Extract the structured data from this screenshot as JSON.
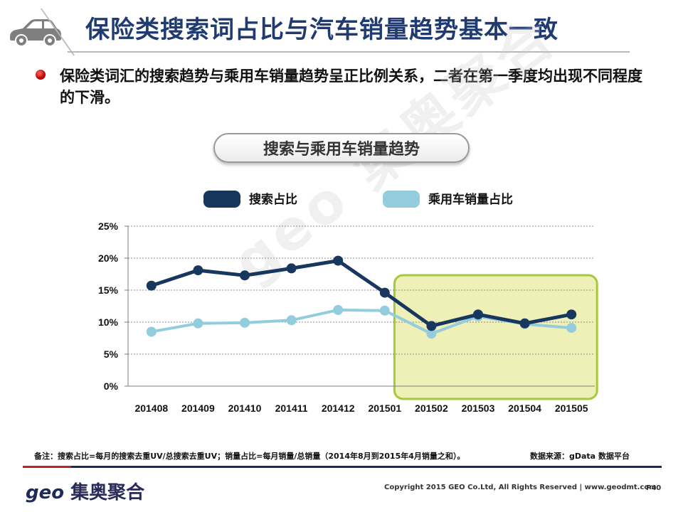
{
  "header": {
    "title": "保险类搜索词占比与汽车销量趋势基本一致"
  },
  "bullet": {
    "text": "保险类词汇的搜索趋势与乘用车销量趋势呈正比例关系，二者在第一季度均出现不同程度的下滑。"
  },
  "chart_title": "搜索与乘用车销量趋势",
  "watermark": "geo 集奥聚合",
  "footnote": "备注：搜索占比=每月的搜索去重UV/总搜索去重UV；销量占比=每月销量/总销量（2014年8月到2015年4月销量之和）。",
  "source": "数据来源：gData  数据平台",
  "footer": {
    "logo_latin": "geo",
    "logo_cn": "集奥聚合",
    "copyright": "Copyright 2015 GEO Co.Ltd, All Rights Reserved  |  www.geodmt.com",
    "page": "P40"
  },
  "colors": {
    "series1": "#17375e",
    "series2": "#93cddd",
    "highlight_fill": "#eef0b8",
    "highlight_border": "#a6c83c",
    "title": "#1f3b72"
  },
  "chart_data": {
    "type": "line",
    "title": "搜索与乘用车销量趋势",
    "categories": [
      "201408",
      "201409",
      "201410",
      "201411",
      "201412",
      "201501",
      "201502",
      "201503",
      "201504",
      "201505"
    ],
    "series": [
      {
        "name": "搜索占比",
        "values": [
          15.7,
          18.1,
          17.3,
          18.4,
          19.6,
          14.6,
          9.4,
          11.2,
          9.8,
          11.2
        ]
      },
      {
        "name": "乘用车销量占比",
        "values": [
          8.5,
          9.8,
          9.9,
          10.3,
          11.9,
          11.8,
          8.2,
          10.9,
          9.7,
          9.1
        ]
      }
    ],
    "ylim": [
      0,
      25
    ],
    "yticks": [
      "0%",
      "5%",
      "10%",
      "15%",
      "20%",
      "25%"
    ],
    "ytick_values": [
      0,
      5,
      10,
      15,
      20,
      25
    ],
    "highlight_range": [
      "201502",
      "201505"
    ],
    "legend": "top",
    "grid": true
  }
}
